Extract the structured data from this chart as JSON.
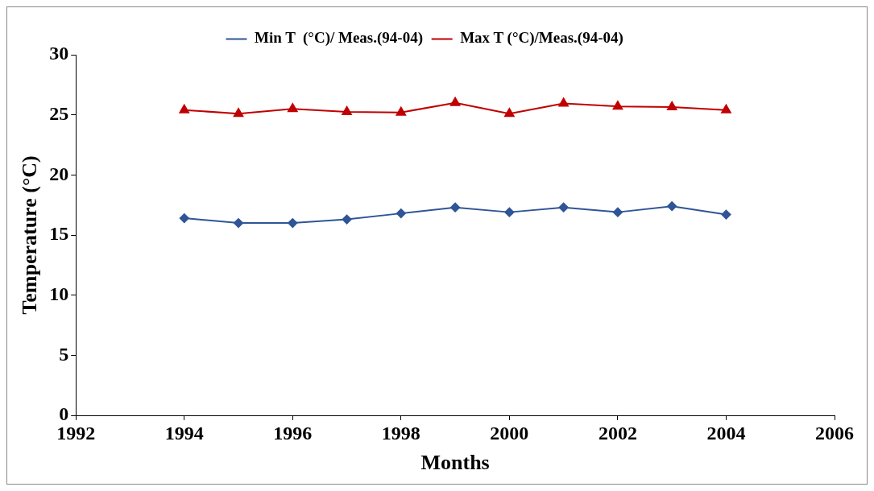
{
  "chart_data": {
    "type": "line",
    "xlabel": "Months",
    "ylabel": "Temperature (°C)",
    "x": [
      1994,
      1995,
      1996,
      1997,
      1998,
      1999,
      2000,
      2001,
      2002,
      2003,
      2004
    ],
    "series": [
      {
        "name": "Min T  (°C)/ Meas.(94-04)",
        "color": "#2f5597",
        "marker": "diamond",
        "values": [
          16.4,
          16.0,
          16.0,
          16.3,
          16.8,
          17.3,
          16.9,
          17.3,
          16.9,
          17.4,
          16.7
        ]
      },
      {
        "name": "Max T (°C)/Meas.(94-04)",
        "color": "#c00000",
        "marker": "triangle",
        "values": [
          25.4,
          25.1,
          25.5,
          25.25,
          25.2,
          26.0,
          25.1,
          25.95,
          25.7,
          25.65,
          25.4
        ]
      }
    ],
    "xlim": [
      1992,
      2006
    ],
    "xticks": [
      1992,
      1994,
      1996,
      1998,
      2000,
      2002,
      2004,
      2006
    ],
    "ylim": [
      0,
      30
    ],
    "yticks": [
      0,
      5,
      10,
      15,
      20,
      25,
      30
    ],
    "grid": false,
    "legend": "top",
    "line_style": "solid"
  }
}
